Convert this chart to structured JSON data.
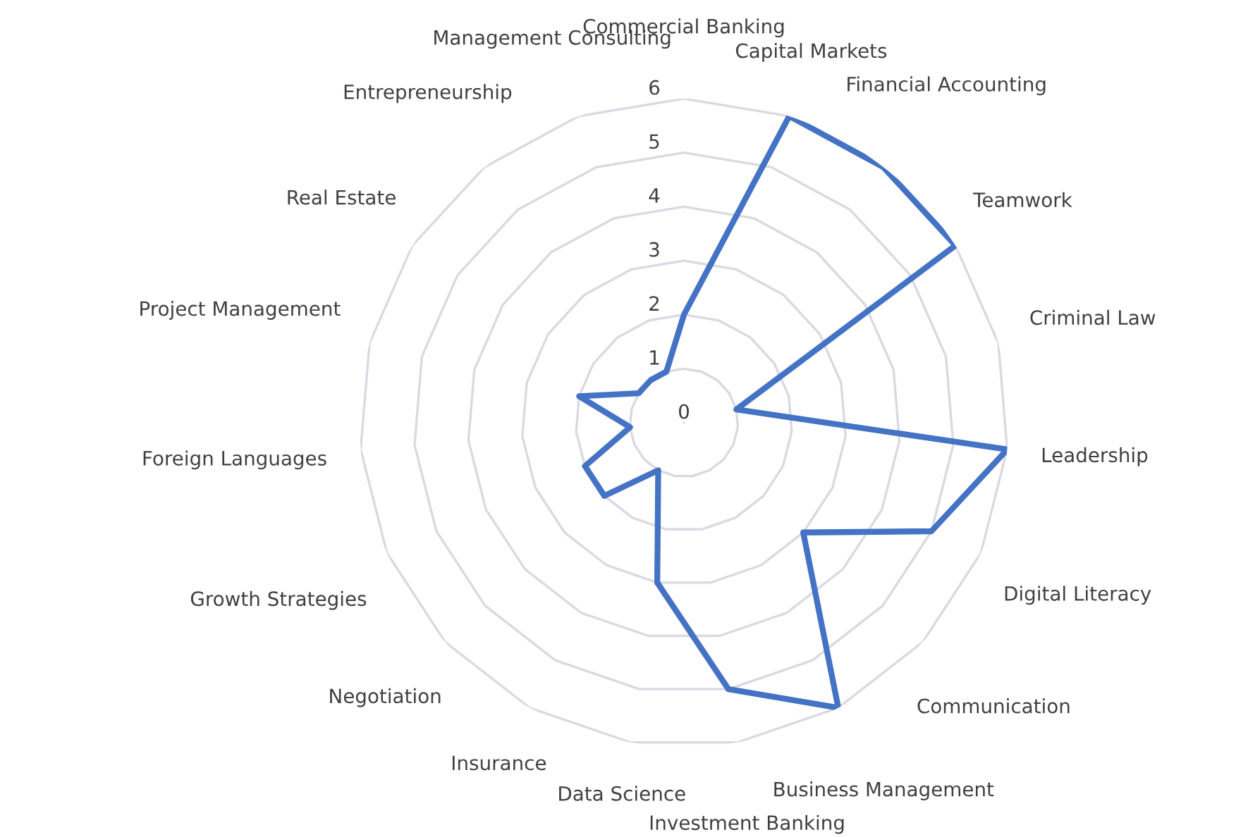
{
  "chart_data": {
    "type": "radar",
    "categories": [
      "Commercial Banking",
      "Capital Markets",
      "Financial Accounting",
      "Teamwork",
      "Criminal Law",
      "Leadership",
      "Digital Literacy",
      "Communication",
      "Business Management",
      "Investment Banking",
      "Data Science",
      "Insurance",
      "Negotiation",
      "Growth Strategies",
      "Foreign Languages",
      "Project Management",
      "Real Estate",
      "Entrepreneurship",
      "Management Consulting"
    ],
    "series": [
      {
        "color": "#4472c4",
        "values": [
          2,
          6,
          6,
          6,
          1,
          6,
          5,
          3,
          6,
          5,
          3,
          1,
          2,
          2,
          1,
          2,
          1,
          1,
          1
        ]
      }
    ],
    "ylim": [
      0,
      6
    ],
    "yticks": [
      0,
      1,
      2,
      3,
      4,
      5,
      6
    ],
    "grid": true,
    "marker": "none",
    "line_style": "solid"
  }
}
